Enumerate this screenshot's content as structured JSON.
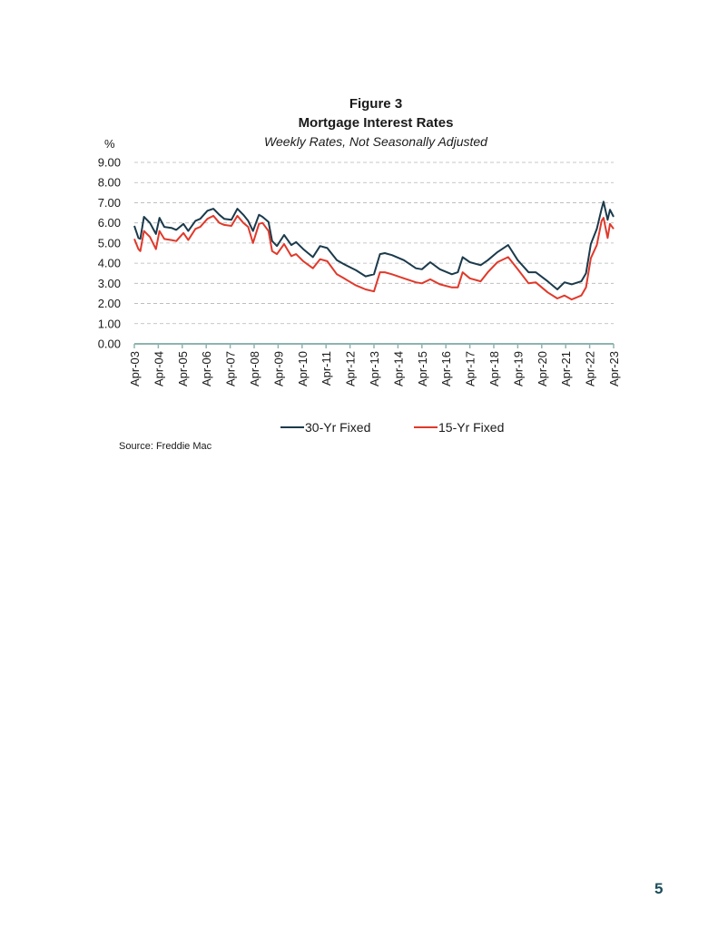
{
  "page_number": "5",
  "source": "Source: Freddie Mac",
  "chart_data": {
    "type": "line",
    "figure_label": "Figure 3",
    "title": "Mortgage Interest Rates",
    "subtitle": "Weekly Rates, Not Seasonally Adjusted",
    "unit_label": "%",
    "ylim": [
      0,
      9
    ],
    "yticks": [
      "0.00",
      "1.00",
      "2.00",
      "3.00",
      "4.00",
      "5.00",
      "6.00",
      "7.00",
      "8.00",
      "9.00"
    ],
    "xtick_labels": [
      "Apr-03",
      "Apr-04",
      "Apr-05",
      "Apr-06",
      "Apr-07",
      "Apr-08",
      "Apr-09",
      "Apr-10",
      "Apr-11",
      "Apr-12",
      "Apr-13",
      "Apr-14",
      "Apr-15",
      "Apr-16",
      "Apr-17",
      "Apr-18",
      "Apr-19",
      "Apr-20",
      "Apr-21",
      "Apr-22",
      "Apr-23"
    ],
    "grid": true,
    "legend_position": "bottom",
    "x_start": 2003.25,
    "x_end": 2023.25,
    "series": [
      {
        "name": "30-Yr Fixed",
        "color": "#1b3a4b",
        "x": [
          2003.25,
          2003.42,
          2003.5,
          2003.65,
          2003.9,
          2004.15,
          2004.3,
          2004.5,
          2004.8,
          2005.0,
          2005.3,
          2005.5,
          2005.8,
          2006.0,
          2006.3,
          2006.55,
          2006.8,
          2007.0,
          2007.3,
          2007.55,
          2007.8,
          2008.0,
          2008.2,
          2008.45,
          2008.6,
          2008.85,
          2009.0,
          2009.2,
          2009.5,
          2009.8,
          2010.0,
          2010.3,
          2010.7,
          2011.0,
          2011.3,
          2011.7,
          2012.0,
          2012.5,
          2012.9,
          2013.25,
          2013.5,
          2013.7,
          2014.0,
          2014.5,
          2015.0,
          2015.25,
          2015.6,
          2016.0,
          2016.5,
          2016.75,
          2016.95,
          2017.25,
          2017.7,
          2018.0,
          2018.4,
          2018.85,
          2019.25,
          2019.7,
          2020.0,
          2020.5,
          2020.9,
          2021.2,
          2021.5,
          2021.9,
          2022.1,
          2022.3,
          2022.55,
          2022.75,
          2022.83,
          2023.0,
          2023.1,
          2023.25
        ],
        "values": [
          5.85,
          5.25,
          5.21,
          6.3,
          6.0,
          5.45,
          6.25,
          5.8,
          5.75,
          5.65,
          5.95,
          5.6,
          6.1,
          6.2,
          6.6,
          6.7,
          6.4,
          6.2,
          6.15,
          6.7,
          6.4,
          6.1,
          5.6,
          6.4,
          6.3,
          6.05,
          5.1,
          4.85,
          5.4,
          4.9,
          5.05,
          4.7,
          4.3,
          4.85,
          4.75,
          4.15,
          3.95,
          3.65,
          3.35,
          3.45,
          4.45,
          4.5,
          4.4,
          4.15,
          3.75,
          3.7,
          4.05,
          3.7,
          3.45,
          3.55,
          4.3,
          4.05,
          3.9,
          4.15,
          4.55,
          4.9,
          4.15,
          3.55,
          3.55,
          3.1,
          2.7,
          3.05,
          2.95,
          3.1,
          3.5,
          4.95,
          5.7,
          6.7,
          7.05,
          6.15,
          6.65,
          6.3
        ]
      },
      {
        "name": "15-Yr Fixed",
        "color": "#e0392b",
        "x": [
          2003.25,
          2003.42,
          2003.5,
          2003.65,
          2003.9,
          2004.15,
          2004.3,
          2004.5,
          2004.8,
          2005.0,
          2005.3,
          2005.5,
          2005.8,
          2006.0,
          2006.3,
          2006.55,
          2006.8,
          2007.0,
          2007.3,
          2007.55,
          2007.8,
          2008.0,
          2008.2,
          2008.45,
          2008.6,
          2008.85,
          2009.0,
          2009.2,
          2009.5,
          2009.8,
          2010.0,
          2010.3,
          2010.7,
          2011.0,
          2011.3,
          2011.7,
          2012.0,
          2012.5,
          2012.9,
          2013.25,
          2013.5,
          2013.7,
          2014.0,
          2014.5,
          2015.0,
          2015.25,
          2015.6,
          2016.0,
          2016.5,
          2016.75,
          2016.95,
          2017.25,
          2017.7,
          2018.0,
          2018.4,
          2018.85,
          2019.25,
          2019.7,
          2020.0,
          2020.5,
          2020.9,
          2021.2,
          2021.5,
          2021.9,
          2022.1,
          2022.3,
          2022.55,
          2022.75,
          2022.83,
          2023.0,
          2023.1,
          2023.25
        ],
        "values": [
          5.2,
          4.7,
          4.6,
          5.6,
          5.3,
          4.7,
          5.6,
          5.2,
          5.15,
          5.1,
          5.5,
          5.15,
          5.7,
          5.8,
          6.2,
          6.35,
          6.0,
          5.9,
          5.85,
          6.35,
          6.0,
          5.8,
          5.0,
          5.95,
          6.0,
          5.6,
          4.6,
          4.45,
          4.95,
          4.35,
          4.45,
          4.1,
          3.75,
          4.2,
          4.1,
          3.45,
          3.25,
          2.9,
          2.7,
          2.6,
          3.55,
          3.55,
          3.45,
          3.25,
          3.05,
          3.0,
          3.2,
          2.95,
          2.8,
          2.8,
          3.55,
          3.25,
          3.1,
          3.55,
          4.05,
          4.3,
          3.7,
          3.0,
          3.05,
          2.55,
          2.25,
          2.4,
          2.2,
          2.4,
          2.8,
          4.25,
          4.9,
          6.1,
          6.25,
          5.25,
          5.95,
          5.7
        ]
      }
    ]
  }
}
